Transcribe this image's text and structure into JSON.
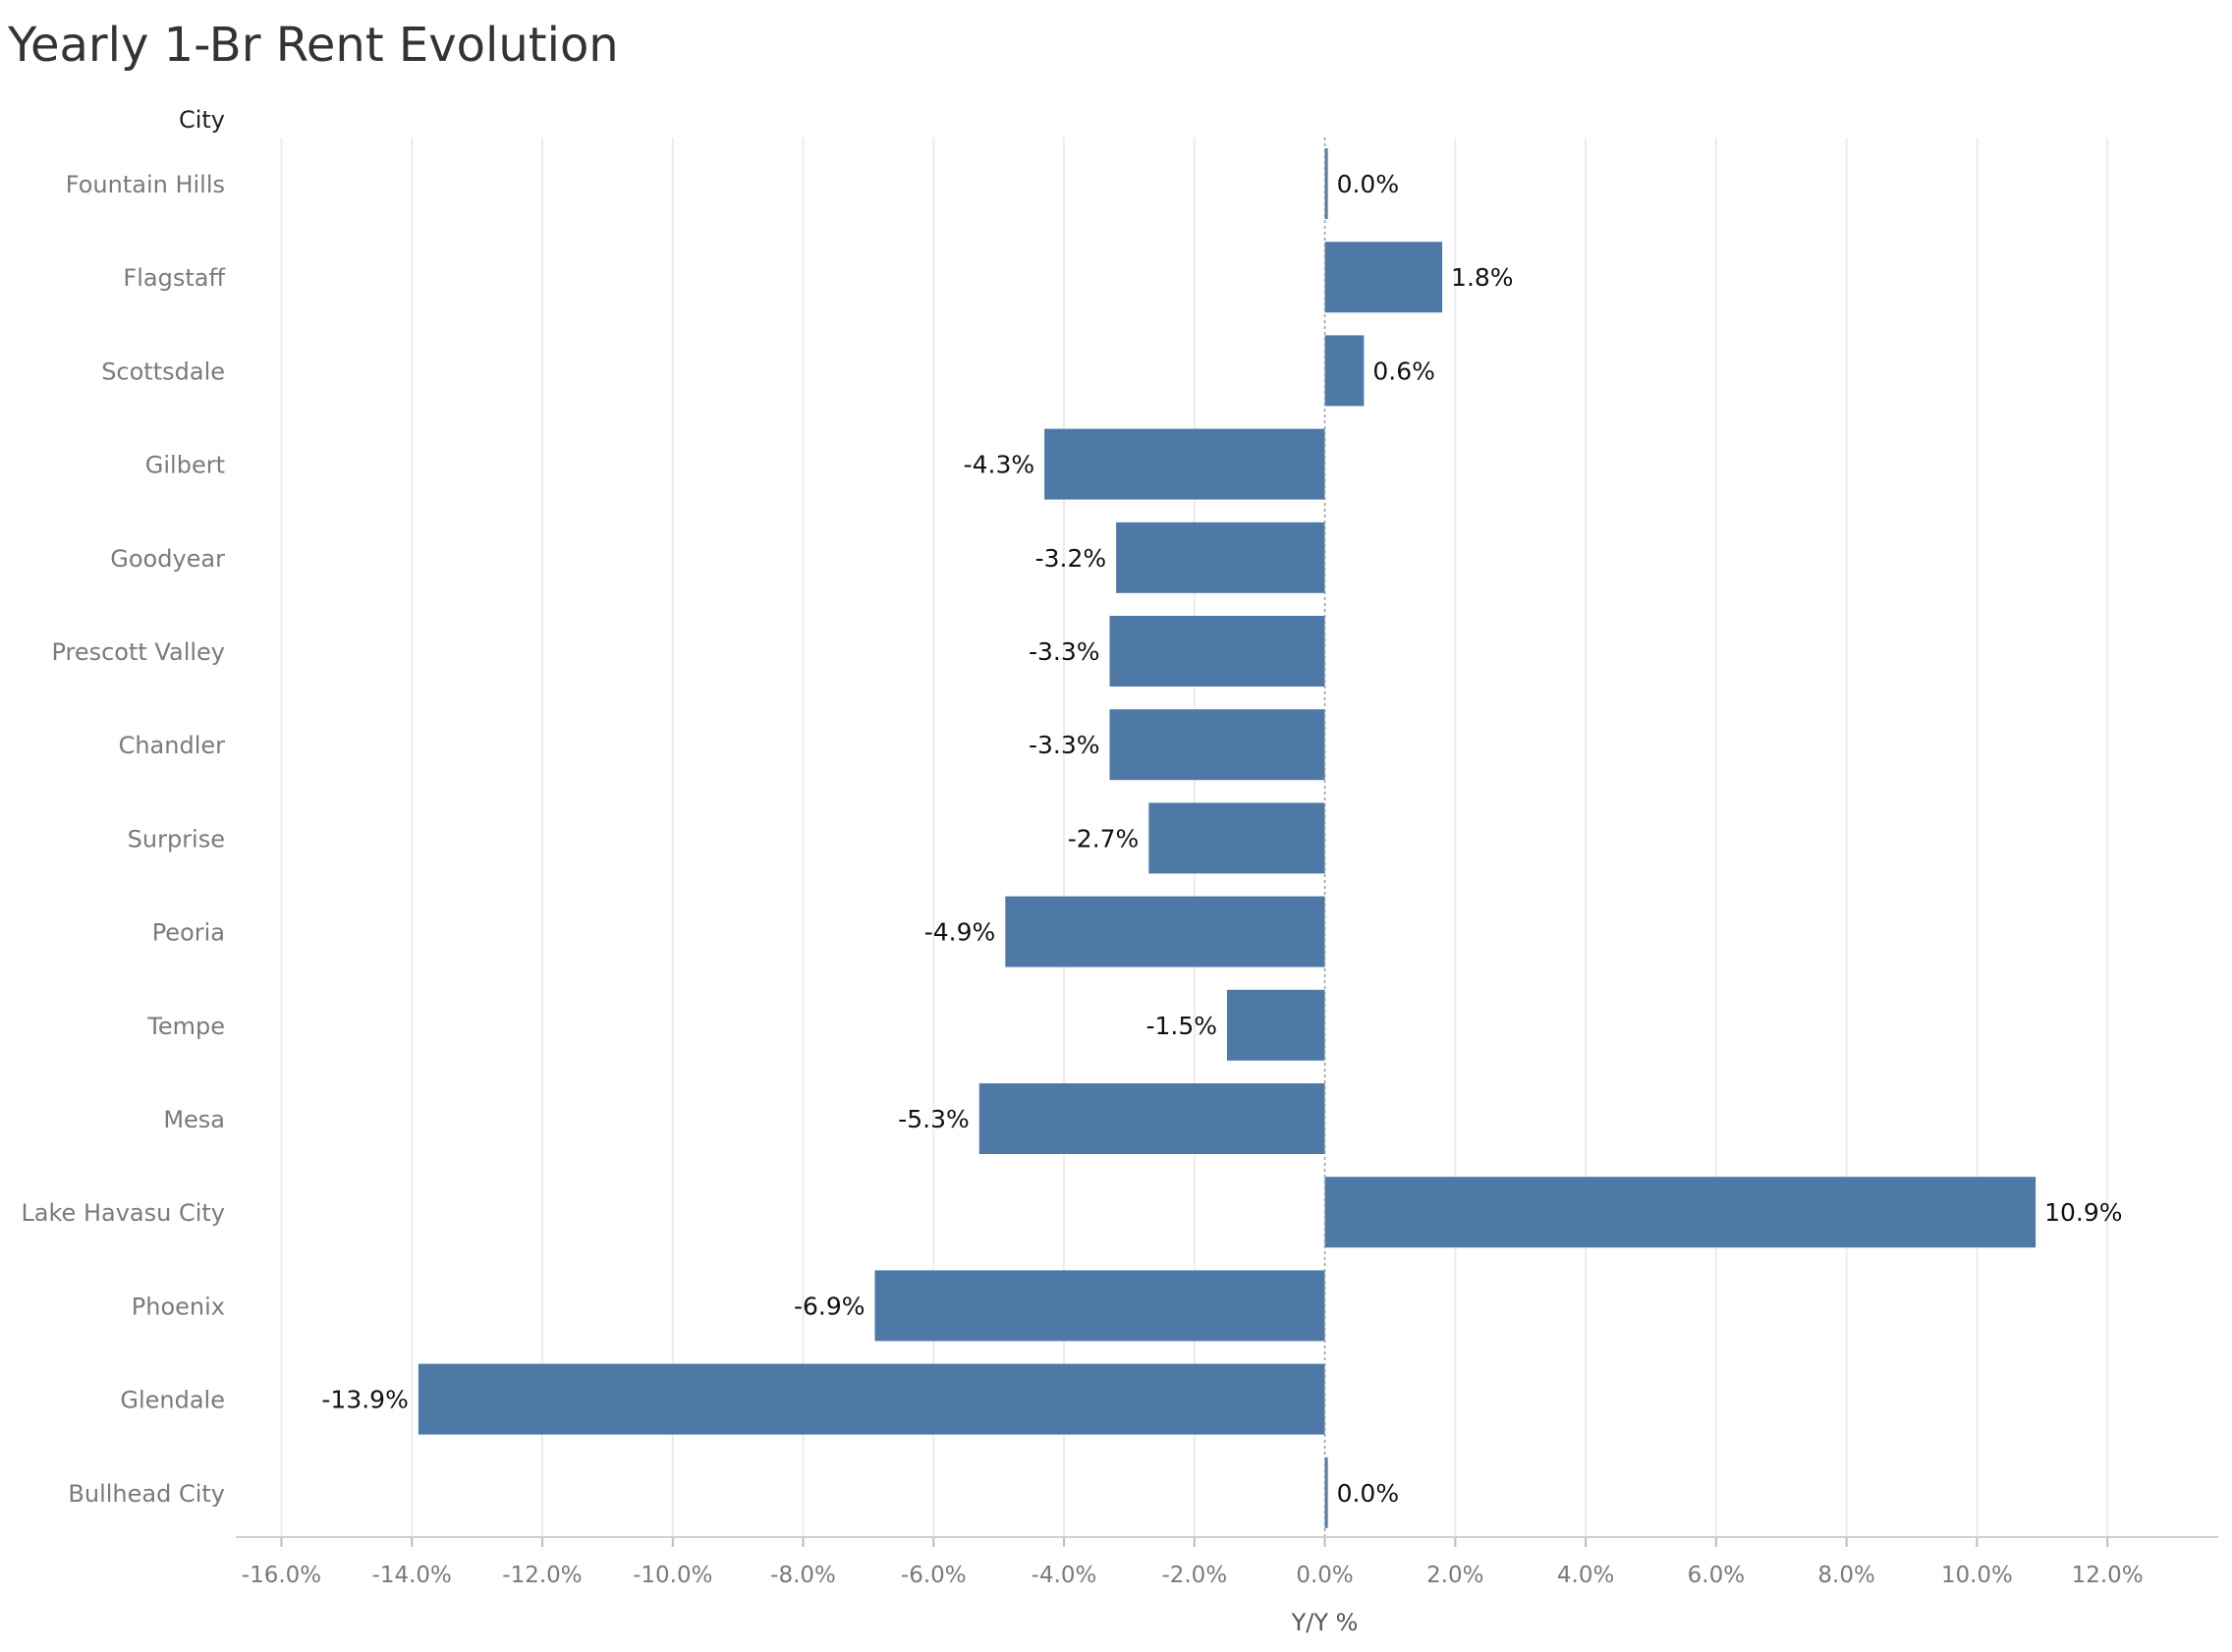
{
  "chart_data": {
    "type": "bar",
    "orientation": "horizontal",
    "title": "Yearly 1-Br Rent Evolution",
    "category_header": "City",
    "xlabel": "Y/Y %",
    "xlim": [
      -16.7,
      13.7
    ],
    "x_ticks": [
      -16,
      -14,
      -12,
      -10,
      -8,
      -6,
      -4,
      -2,
      0,
      2,
      4,
      6,
      8,
      10,
      12
    ],
    "x_tick_labels": [
      "-16.0%",
      "-14.0%",
      "-12.0%",
      "-10.0%",
      "-8.0%",
      "-6.0%",
      "-4.0%",
      "-2.0%",
      "0.0%",
      "2.0%",
      "4.0%",
      "6.0%",
      "8.0%",
      "10.0%",
      "12.0%"
    ],
    "grid": true,
    "categories": [
      "Fountain Hills",
      "Flagstaff",
      "Scottsdale",
      "Gilbert",
      "Goodyear",
      "Prescott Valley",
      "Chandler",
      "Surprise",
      "Peoria",
      "Tempe",
      "Mesa",
      "Lake Havasu City",
      "Phoenix",
      "Glendale",
      "Bullhead City"
    ],
    "values": [
      0.0,
      1.8,
      0.6,
      -4.3,
      -3.2,
      -3.3,
      -3.3,
      -2.7,
      -4.9,
      -1.5,
      -5.3,
      10.9,
      -6.9,
      -13.9,
      0.0
    ],
    "value_labels": [
      "0.0%",
      "1.8%",
      "0.6%",
      "-4.3%",
      "-3.2%",
      "-3.3%",
      "-3.3%",
      "-2.7%",
      "-4.9%",
      "-1.5%",
      "-5.3%",
      "10.9%",
      "-6.9%",
      "-13.9%",
      "0.0%"
    ],
    "bar_color": "#4e79a7"
  }
}
